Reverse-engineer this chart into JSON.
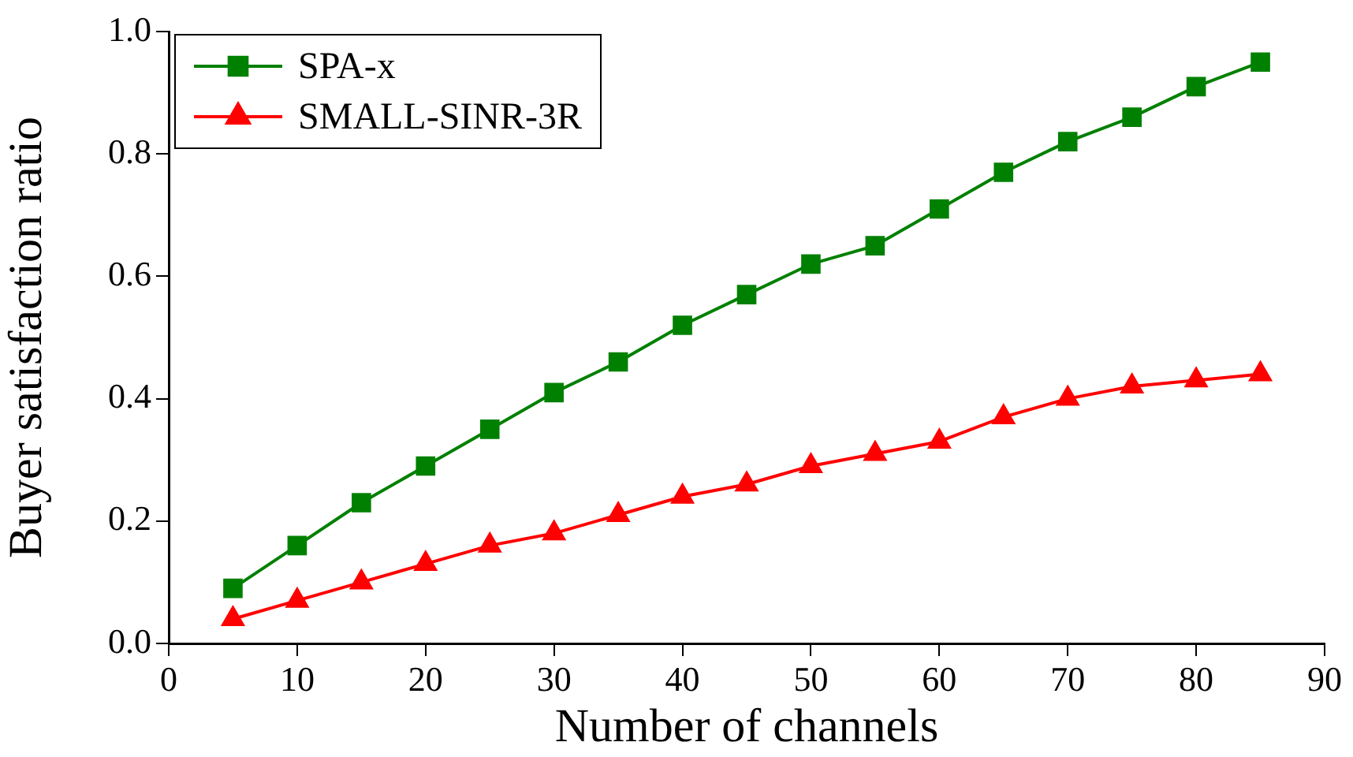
{
  "chart_data": {
    "type": "line",
    "xlabel": "Number of channels",
    "ylabel": "Buyer satisfaction ratio",
    "x": [
      5,
      10,
      15,
      20,
      25,
      30,
      35,
      40,
      45,
      50,
      55,
      60,
      65,
      70,
      75,
      80,
      85
    ],
    "series": [
      {
        "name": "SPA-x",
        "color": "#008000",
        "marker": "square",
        "values": [
          0.09,
          0.16,
          0.23,
          0.29,
          0.35,
          0.41,
          0.46,
          0.52,
          0.57,
          0.62,
          0.65,
          0.71,
          0.77,
          0.82,
          0.86,
          0.91,
          0.95
        ]
      },
      {
        "name": "SMALL-SINR-3R",
        "color": "#ff0000",
        "marker": "triangle",
        "values": [
          0.04,
          0.07,
          0.1,
          0.13,
          0.16,
          0.18,
          0.21,
          0.24,
          0.26,
          0.29,
          0.31,
          0.33,
          0.37,
          0.4,
          0.42,
          0.43,
          0.44
        ]
      }
    ],
    "xlim": [
      0,
      90
    ],
    "xticks": [
      0,
      10,
      20,
      30,
      40,
      50,
      60,
      70,
      80,
      90
    ],
    "ylim": [
      0,
      1.0
    ],
    "yticks": [
      {
        "value": 0,
        "label": "0.0"
      },
      {
        "value": 0.2,
        "label": "0.2"
      },
      {
        "value": 0.4,
        "label": "0.4"
      },
      {
        "value": 0.6,
        "label": "0.6"
      },
      {
        "value": 0.8,
        "label": "0.8"
      },
      {
        "value": 1.0,
        "label": "1.0"
      }
    ],
    "grid": false,
    "legend": "top left",
    "line_style": "solid"
  }
}
